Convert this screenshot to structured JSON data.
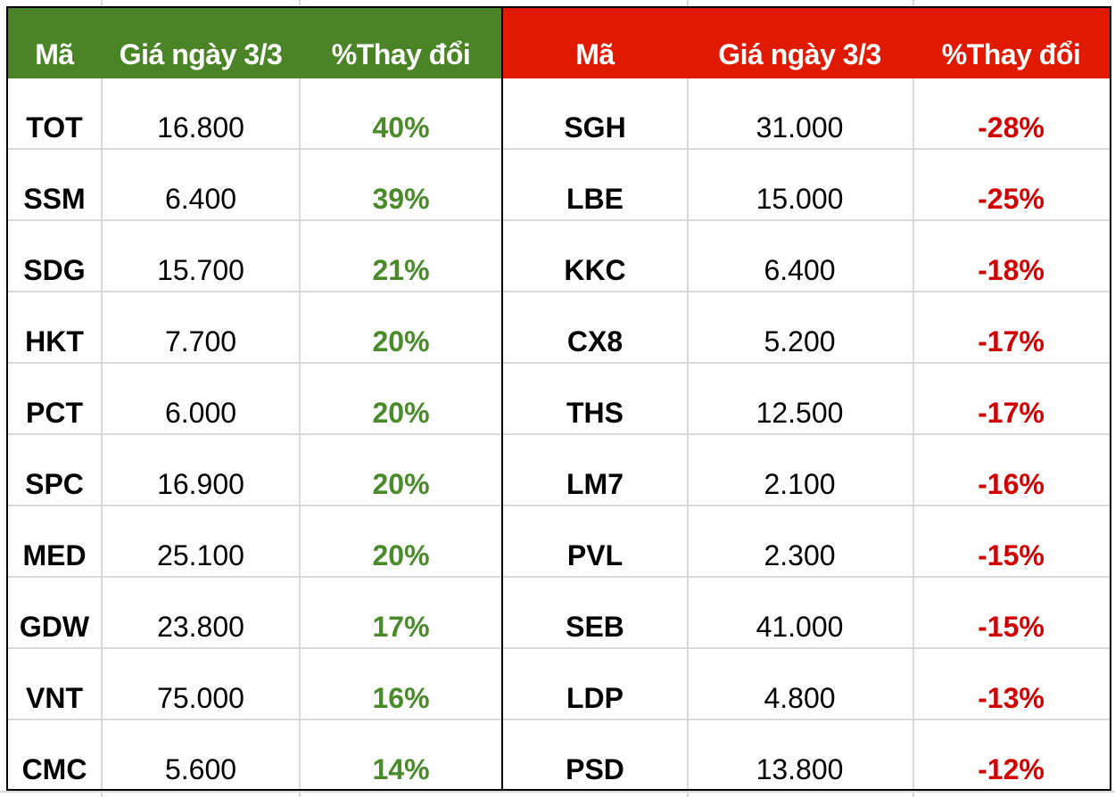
{
  "gainers": {
    "header_color": "#4a8426",
    "value_color": "#4a8a2a",
    "columns": [
      "Mã",
      "Giá ngày 3/3",
      "%Thay đổi"
    ],
    "rows": [
      {
        "code": "TOT",
        "price": "16.800",
        "change": "40%"
      },
      {
        "code": "SSM",
        "price": "6.400",
        "change": "39%"
      },
      {
        "code": "SDG",
        "price": "15.700",
        "change": "21%"
      },
      {
        "code": "HKT",
        "price": "7.700",
        "change": "20%"
      },
      {
        "code": "PCT",
        "price": "6.000",
        "change": "20%"
      },
      {
        "code": "SPC",
        "price": "16.900",
        "change": "20%"
      },
      {
        "code": "MED",
        "price": "25.100",
        "change": "20%"
      },
      {
        "code": "GDW",
        "price": "23.800",
        "change": "17%"
      },
      {
        "code": "VNT",
        "price": "75.000",
        "change": "16%"
      },
      {
        "code": "CMC",
        "price": "5.600",
        "change": "14%"
      }
    ]
  },
  "losers": {
    "header_color": "#df1a00",
    "value_color": "#d00000",
    "columns": [
      "Mã",
      "Giá ngày 3/3",
      "%Thay đổi"
    ],
    "rows": [
      {
        "code": "SGH",
        "price": "31.000",
        "change": "-28%"
      },
      {
        "code": "LBE",
        "price": "15.000",
        "change": "-25%"
      },
      {
        "code": "KKC",
        "price": "6.400",
        "change": "-18%"
      },
      {
        "code": "CX8",
        "price": "5.200",
        "change": "-17%"
      },
      {
        "code": "THS",
        "price": "12.500",
        "change": "-17%"
      },
      {
        "code": "LM7",
        "price": "2.100",
        "change": "-16%"
      },
      {
        "code": "PVL",
        "price": "2.300",
        "change": "-15%"
      },
      {
        "code": "SEB",
        "price": "41.000",
        "change": "-15%"
      },
      {
        "code": "LDP",
        "price": "4.800",
        "change": "-13%"
      },
      {
        "code": "PSD",
        "price": "13.800",
        "change": "-12%"
      }
    ]
  }
}
